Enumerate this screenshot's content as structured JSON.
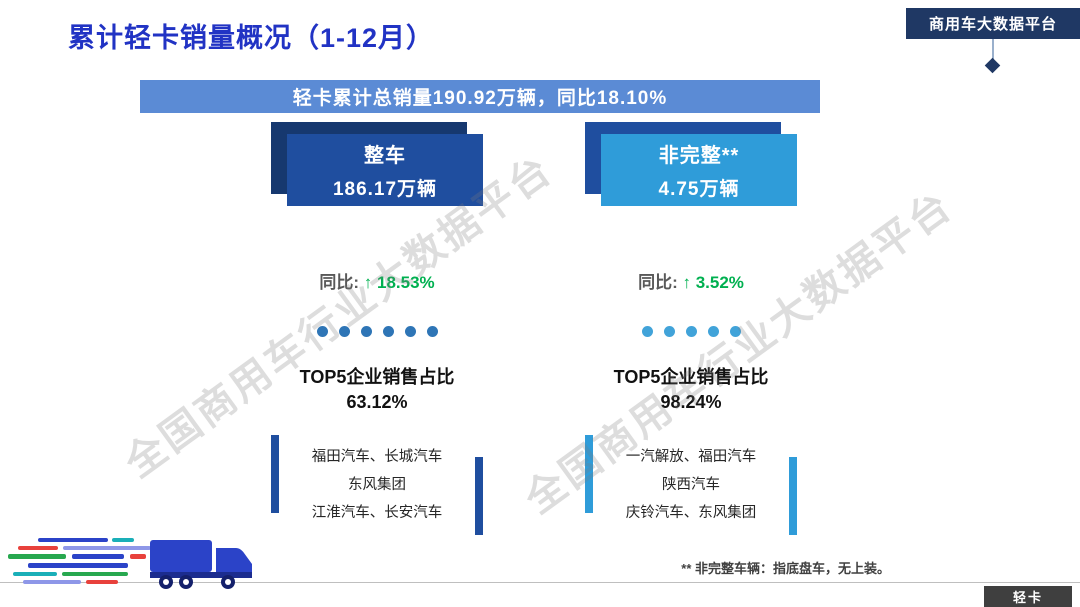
{
  "page": {
    "title": "累计轻卡销量概况（1-12月）",
    "platform_badge": "商用车大数据平台",
    "banner": "轻卡累计总销量190.92万辆，同比18.10%",
    "footnote": "** 非完整车辆：指底盘车，无上装。",
    "category_badge": "轻卡",
    "watermark": "全国商用车行业大数据平台"
  },
  "columns": [
    {
      "id": "complete-vehicle",
      "box_title": "整车",
      "box_value": "186.17万辆",
      "yoy_label": "同比:",
      "yoy_arrow": "↑",
      "yoy_value": "18.53%",
      "dots": 6,
      "top5_label": "TOP5企业销售占比",
      "top5_value": "63.12%",
      "companies": [
        "福田汽车、长城汽车",
        "东风集团",
        "江淮汽车、长安汽车"
      ]
    },
    {
      "id": "incomplete-vehicle",
      "box_title": "非完整**",
      "box_value": "4.75万辆",
      "yoy_label": "同比:",
      "yoy_arrow": "↑",
      "yoy_value": "3.52%",
      "dots": 5,
      "top5_label": "TOP5企业销售占比",
      "top5_value": "98.24%",
      "companies": [
        "一汽解放、福田汽车",
        "陕西汽车",
        "庆铃汽车、东风集团"
      ]
    }
  ],
  "colors": {
    "title_blue": "#2133C4",
    "banner_blue": "#5B8BD5",
    "box_left": "#1F4E9F",
    "box_left_shadow": "#16386F",
    "box_right": "#2F9CD9",
    "box_right_shadow": "#1F4E9F",
    "green": "#00B050",
    "badge_navy": "#1F3864",
    "category_dark": "#3F3F3F",
    "dots_left": "#2E75B6",
    "dots_right": "#41A3D9"
  }
}
